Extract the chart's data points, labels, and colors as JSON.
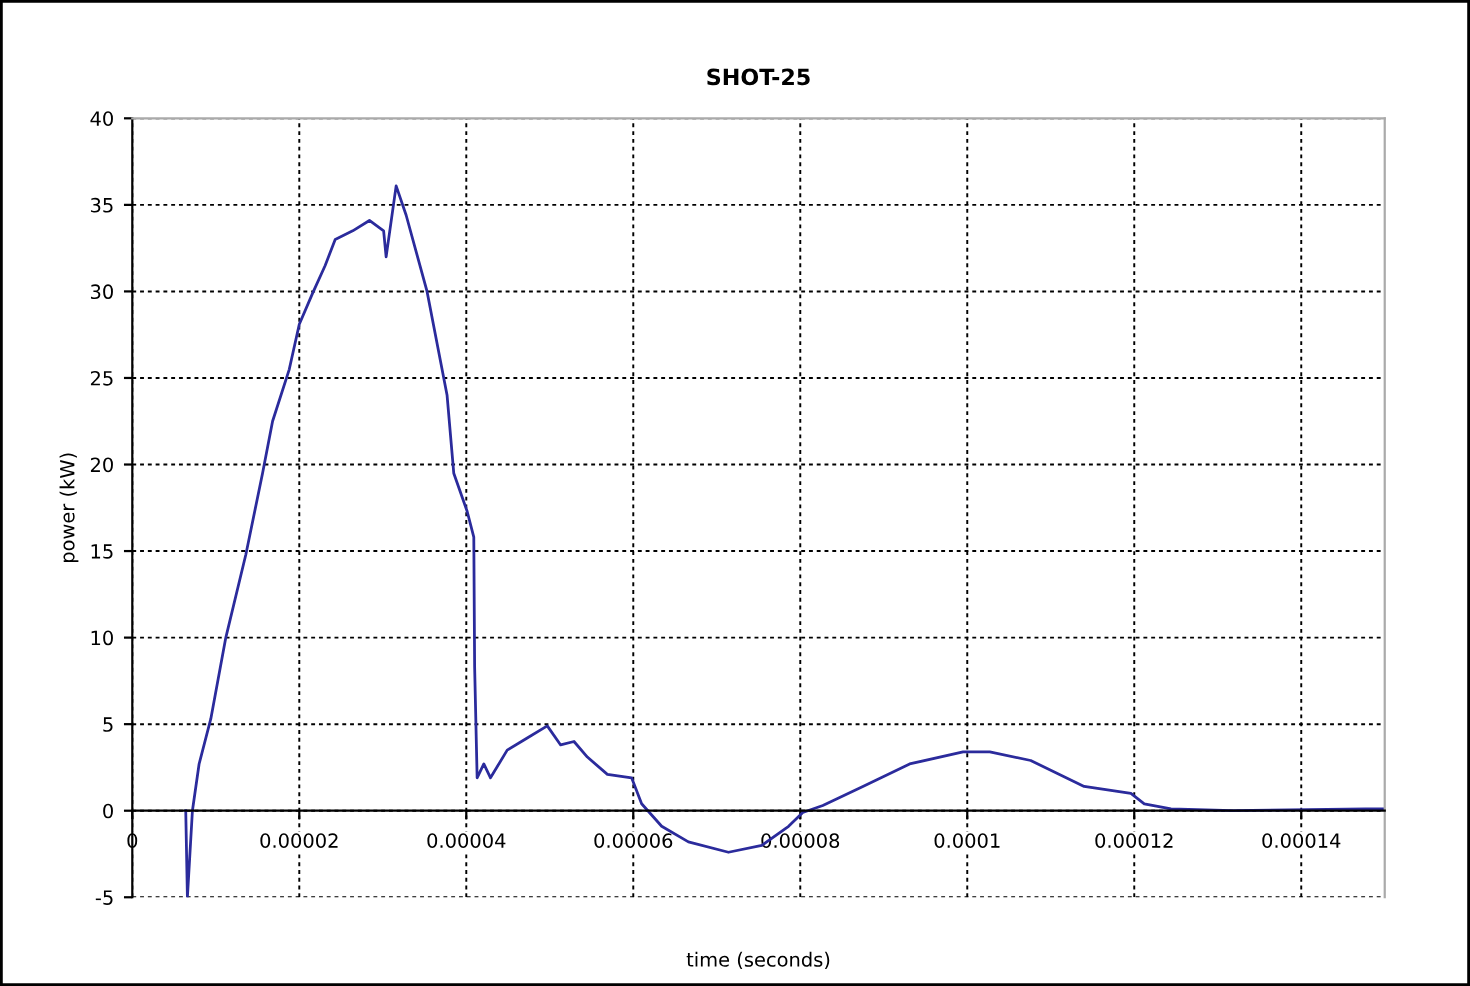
{
  "chart_data": {
    "type": "line",
    "title": "SHOT-25",
    "xlabel": "time (seconds)",
    "ylabel": "power (kW)",
    "xlim": [
      0,
      0.00015
    ],
    "xticks": [
      0,
      {
        "value": 2e-05,
        "label": "0.00002"
      },
      {
        "value": 4e-05,
        "label": "0.00004"
      },
      {
        "value": 6e-05,
        "label": "0.00006"
      },
      {
        "value": 8e-05,
        "label": "0.00008"
      },
      {
        "value": 0.0001,
        "label": "0.0001"
      },
      {
        "value": 0.00012,
        "label": "0.00012"
      },
      {
        "value": 0.00014,
        "label": "0.00014"
      }
    ],
    "ylim": [
      -5,
      40
    ],
    "yticks": [
      -5,
      0,
      5,
      10,
      15,
      20,
      25,
      30,
      35,
      40
    ],
    "grid": true,
    "marker": "none",
    "line_style": "solid",
    "series": [
      {
        "color": "#2b2b9c",
        "x": [
          6.4e-06,
          6.6e-06,
          7.2e-06,
          8e-06,
          9.4e-06,
          1.12e-05,
          1.36e-05,
          1.56e-05,
          1.68e-05,
          1.88e-05,
          2e-05,
          2.16e-05,
          2.31e-05,
          2.43e-05,
          2.64e-05,
          2.84e-05,
          3.01e-05,
          3.04e-05,
          3.16e-05,
          3.28e-05,
          3.53e-05,
          3.77e-05,
          3.85e-05,
          4.01e-05,
          4.09e-05,
          4.1e-05,
          4.13e-05,
          4.21e-05,
          4.29e-05,
          4.49e-05,
          4.73e-05,
          4.97e-05,
          5.13e-05,
          5.29e-05,
          5.45e-05,
          5.69e-05,
          5.98e-05,
          6.1e-05,
          6.34e-05,
          6.66e-05,
          7.14e-05,
          7.54e-05,
          7.86e-05,
          8.03e-05,
          8.27e-05,
          8.75e-05,
          9.31e-05,
          9.95e-05,
          0.0001027,
          0.0001076,
          0.000114,
          0.0001196,
          0.0001212,
          0.0001244,
          0.0001317,
          0.0001477,
          0.00015
        ],
        "values": [
          0,
          -5,
          0,
          2.7,
          5.3,
          10,
          14.8,
          19.5,
          22.5,
          25.5,
          28.1,
          29.9,
          31.5,
          33,
          33.5,
          34.1,
          33.5,
          32,
          36.1,
          34.4,
          30,
          24,
          19.5,
          17.3,
          15.8,
          8.3,
          1.9,
          2.7,
          1.9,
          3.5,
          4.2,
          4.9,
          3.8,
          4,
          3.1,
          2.1,
          1.9,
          0.4,
          -0.9,
          -1.8,
          -2.4,
          -2,
          -0.9,
          -0.1,
          0.3,
          1.4,
          2.7,
          3.4,
          3.4,
          2.9,
          1.4,
          1.0,
          0.4,
          0.1,
          0,
          0.1,
          0.1
        ]
      }
    ]
  }
}
